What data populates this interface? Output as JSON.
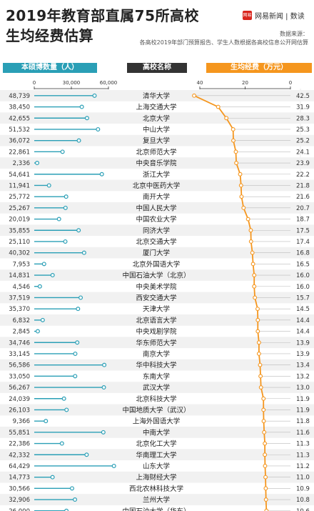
{
  "header": {
    "title_line1": "2019年教育部直属75所高校",
    "title_line2": "生均经费估算",
    "brand": "网易新闻 | 数读",
    "logo_text": "网易",
    "source_line1": "数据来源：",
    "source_line2": "各高校2019年部门预算报告、学生人数根据各高校信息公开网估算"
  },
  "column_headers": {
    "students": "本硕博数量（人）",
    "name": "高校名称",
    "funding": "生均经费（万元）"
  },
  "colors": {
    "teal": "#2a9fb6",
    "orange": "#f5961e",
    "dark": "#333333"
  },
  "chart_data": [
    {
      "type": "lollipop",
      "xlabel": "本硕博数量（人）",
      "xlim": [
        0,
        60000
      ],
      "xticks": [
        "0",
        "30,000",
        "60,000"
      ],
      "tick_values": [
        0,
        30000,
        60000
      ],
      "categories": [
        "清华大学",
        "上海交通大学",
        "北京大学",
        "中山大学",
        "复旦大学",
        "北京师范大学",
        "中央音乐学院",
        "浙江大学",
        "北京中医药大学",
        "南开大学",
        "中国人民大学",
        "中国农业大学",
        "同济大学",
        "北京交通大学",
        "厦门大学",
        "北京外国语大学",
        "中国石油大学（北京）",
        "中央美术学院",
        "西安交通大学",
        "天津大学",
        "北京语言大学",
        "中央戏剧学院",
        "华东师范大学",
        "南京大学",
        "华中科技大学",
        "东南大学",
        "武汉大学",
        "北京科技大学",
        "中国地质大学（武汉）",
        "上海外国语大学",
        "中南大学",
        "北京化工大学",
        "华南理工大学",
        "山东大学",
        "上海财经大学",
        "西北农林科技大学",
        "兰州大学",
        "中国石油大学（华东）"
      ],
      "values": [
        48739,
        38450,
        42655,
        51532,
        36072,
        22861,
        2336,
        54641,
        11941,
        25772,
        25267,
        20019,
        35855,
        25110,
        40302,
        7953,
        14831,
        4546,
        37519,
        35370,
        6832,
        2845,
        34746,
        33145,
        56586,
        33050,
        56267,
        24039,
        26103,
        9366,
        55851,
        22386,
        42332,
        64429,
        14773,
        30566,
        32906,
        26000
      ],
      "value_labels": [
        "48,739",
        "38,450",
        "42,655",
        "51,532",
        "36,072",
        "22,861",
        "2,336",
        "54,641",
        "11,941",
        "25,772",
        "25,267",
        "20,019",
        "35,855",
        "25,110",
        "40,302",
        "7,953",
        "14,831",
        "4,546",
        "37,519",
        "35,370",
        "6,832",
        "2,845",
        "34,746",
        "33,145",
        "56,586",
        "33,050",
        "56,267",
        "24,039",
        "26,103",
        "9,366",
        "55,851",
        "22,386",
        "42,332",
        "64,429",
        "14,773",
        "30,566",
        "32,906",
        "26,000"
      ]
    },
    {
      "type": "line",
      "xlabel": "生均经费（万元）",
      "xlim": [
        40,
        0
      ],
      "xticks": [
        "40",
        "20",
        "0"
      ],
      "tick_values": [
        40,
        20,
        0
      ],
      "categories": [
        "清华大学",
        "上海交通大学",
        "北京大学",
        "中山大学",
        "复旦大学",
        "北京师范大学",
        "中央音乐学院",
        "浙江大学",
        "北京中医药大学",
        "南开大学",
        "中国人民大学",
        "中国农业大学",
        "同济大学",
        "北京交通大学",
        "厦门大学",
        "北京外国语大学",
        "中国石油大学（北京）",
        "中央美术学院",
        "西安交通大学",
        "天津大学",
        "北京语言大学",
        "中央戏剧学院",
        "华东师范大学",
        "南京大学",
        "华中科技大学",
        "东南大学",
        "武汉大学",
        "北京科技大学",
        "中国地质大学（武汉）",
        "上海外国语大学",
        "中南大学",
        "北京化工大学",
        "华南理工大学",
        "山东大学",
        "上海财经大学",
        "西北农林科技大学",
        "兰州大学",
        "中国石油大学（华东）"
      ],
      "values": [
        42.5,
        31.9,
        28.3,
        25.3,
        25.2,
        24.1,
        23.9,
        22.2,
        21.8,
        21.6,
        20.7,
        18.7,
        17.5,
        17.4,
        16.8,
        16.5,
        16.0,
        16.0,
        15.7,
        14.5,
        14.4,
        14.4,
        13.9,
        13.9,
        13.4,
        13.2,
        13.0,
        11.9,
        11.9,
        11.8,
        11.6,
        11.3,
        11.3,
        11.2,
        11.0,
        10.9,
        10.8,
        10.6
      ],
      "value_labels": [
        "42.5",
        "31.9",
        "28.3",
        "25.3",
        "25.2",
        "24.1",
        "23.9",
        "22.2",
        "21.8",
        "21.6",
        "20.7",
        "18.7",
        "17.5",
        "17.4",
        "16.8",
        "16.5",
        "16.0",
        "16.0",
        "15.7",
        "14.5",
        "14.4",
        "14.4",
        "13.9",
        "13.9",
        "13.4",
        "13.2",
        "13.0",
        "11.9",
        "11.9",
        "11.8",
        "11.6",
        "11.3",
        "11.3",
        "11.2",
        "11.0",
        "10.9",
        "10.8",
        "10.6"
      ]
    }
  ]
}
